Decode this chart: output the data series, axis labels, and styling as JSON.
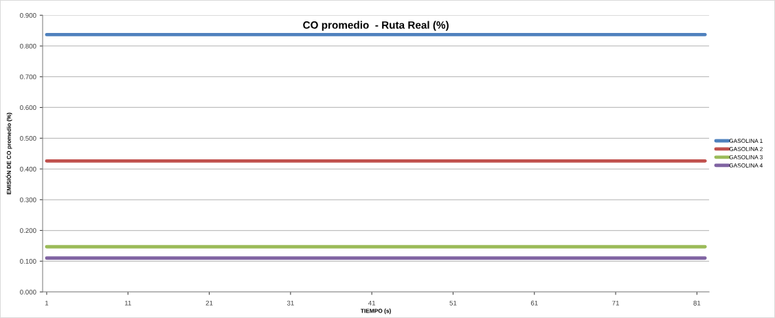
{
  "chart_data": {
    "type": "line",
    "title": "CO promedio  - Ruta Real (%)",
    "xlabel": "TIEMPO (s)",
    "ylabel": "EMISIÓN DE CO promedio (%)",
    "x": [
      1,
      82
    ],
    "xlim": [
      0.5,
      82.5
    ],
    "xticks": [
      1,
      11,
      21,
      31,
      41,
      51,
      61,
      71,
      81
    ],
    "ylim": [
      0,
      0.9
    ],
    "yticks": [
      {
        "value": 0,
        "label": "0.000"
      },
      {
        "value": 0.1,
        "label": "0.100"
      },
      {
        "value": 0.2,
        "label": "0.200"
      },
      {
        "value": 0.3,
        "label": "0.300"
      },
      {
        "value": 0.4,
        "label": "0.400"
      },
      {
        "value": 0.5,
        "label": "0.500"
      },
      {
        "value": 0.6,
        "label": "0.600"
      },
      {
        "value": 0.7,
        "label": "0.700"
      },
      {
        "value": 0.8,
        "label": "0.800"
      },
      {
        "value": 0.9,
        "label": "0.900"
      }
    ],
    "grid": "y",
    "legend": "right",
    "marker": "none",
    "line_style": "solid",
    "series": [
      {
        "name": "GASOLINA 1",
        "color": "#4f81bd",
        "values": [
          0.837,
          0.837
        ]
      },
      {
        "name": "GASOLINA 2",
        "color": "#c0504d",
        "values": [
          0.426,
          0.426
        ]
      },
      {
        "name": "GASOLINA 3",
        "color": "#9bbb59",
        "values": [
          0.147,
          0.147
        ]
      },
      {
        "name": "GASOLINA 4",
        "color": "#8064a2",
        "values": [
          0.11,
          0.11
        ]
      }
    ]
  }
}
